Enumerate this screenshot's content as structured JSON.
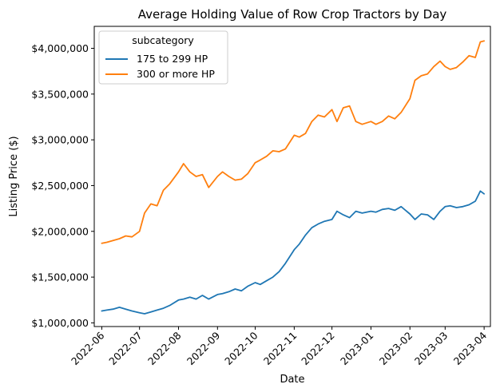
{
  "chart_data": {
    "type": "line",
    "title": "Average Holding Value of Row Crop Tractors by Day",
    "xlabel": "Date",
    "ylabel": "Listing Price ($)",
    "x_ticks": [
      "2022-06",
      "2022-07",
      "2022-08",
      "2022-09",
      "2022-10",
      "2022-11",
      "2022-12",
      "2023-01",
      "2023-02",
      "2023-03",
      "2023-04"
    ],
    "y_ticks": [
      1000000,
      1500000,
      2000000,
      2500000,
      3000000,
      3500000,
      4000000
    ],
    "y_tick_labels": [
      "$1,000,000",
      "$1,500,000",
      "$2,000,000",
      "$2,500,000",
      "$3,000,000",
      "$3,500,000",
      "$4,000,000"
    ],
    "xlim": [
      "2022-05-26",
      "2023-04-06"
    ],
    "ylim": [
      960000,
      4240000
    ],
    "grid": false,
    "legend": {
      "title": "subcategory",
      "placement": "top-left"
    },
    "series": [
      {
        "name": "175 to 299 HP",
        "color": "#1f77b4",
        "points": [
          [
            "2022-06-01",
            1130000
          ],
          [
            "2022-06-05",
            1140000
          ],
          [
            "2022-06-10",
            1150000
          ],
          [
            "2022-06-15",
            1170000
          ],
          [
            "2022-06-20",
            1150000
          ],
          [
            "2022-06-25",
            1130000
          ],
          [
            "2022-07-01",
            1110000
          ],
          [
            "2022-07-05",
            1100000
          ],
          [
            "2022-07-10",
            1120000
          ],
          [
            "2022-07-15",
            1140000
          ],
          [
            "2022-07-20",
            1160000
          ],
          [
            "2022-07-25",
            1190000
          ],
          [
            "2022-08-01",
            1250000
          ],
          [
            "2022-08-05",
            1260000
          ],
          [
            "2022-08-10",
            1280000
          ],
          [
            "2022-08-15",
            1260000
          ],
          [
            "2022-08-20",
            1300000
          ],
          [
            "2022-08-25",
            1260000
          ],
          [
            "2022-09-01",
            1310000
          ],
          [
            "2022-09-05",
            1320000
          ],
          [
            "2022-09-10",
            1340000
          ],
          [
            "2022-09-15",
            1370000
          ],
          [
            "2022-09-20",
            1350000
          ],
          [
            "2022-09-25",
            1400000
          ],
          [
            "2022-10-01",
            1440000
          ],
          [
            "2022-10-05",
            1420000
          ],
          [
            "2022-10-10",
            1460000
          ],
          [
            "2022-10-15",
            1500000
          ],
          [
            "2022-10-20",
            1560000
          ],
          [
            "2022-10-25",
            1650000
          ],
          [
            "2022-11-01",
            1800000
          ],
          [
            "2022-11-05",
            1860000
          ],
          [
            "2022-11-10",
            1960000
          ],
          [
            "2022-11-15",
            2040000
          ],
          [
            "2022-11-20",
            2080000
          ],
          [
            "2022-11-25",
            2110000
          ],
          [
            "2022-12-01",
            2130000
          ],
          [
            "2022-12-05",
            2220000
          ],
          [
            "2022-12-10",
            2180000
          ],
          [
            "2022-12-15",
            2150000
          ],
          [
            "2022-12-20",
            2220000
          ],
          [
            "2022-12-25",
            2200000
          ],
          [
            "2023-01-01",
            2220000
          ],
          [
            "2023-01-05",
            2210000
          ],
          [
            "2023-01-10",
            2240000
          ],
          [
            "2023-01-15",
            2250000
          ],
          [
            "2023-01-20",
            2230000
          ],
          [
            "2023-01-25",
            2270000
          ],
          [
            "2023-02-01",
            2190000
          ],
          [
            "2023-02-05",
            2130000
          ],
          [
            "2023-02-10",
            2190000
          ],
          [
            "2023-02-15",
            2180000
          ],
          [
            "2023-02-20",
            2130000
          ],
          [
            "2023-02-25",
            2220000
          ],
          [
            "2023-03-01",
            2270000
          ],
          [
            "2023-03-05",
            2280000
          ],
          [
            "2023-03-10",
            2260000
          ],
          [
            "2023-03-15",
            2270000
          ],
          [
            "2023-03-20",
            2290000
          ],
          [
            "2023-03-25",
            2330000
          ],
          [
            "2023-03-29",
            2440000
          ],
          [
            "2023-04-01",
            2410000
          ]
        ]
      },
      {
        "name": "300 or more HP",
        "color": "#ff7f0e",
        "points": [
          [
            "2022-06-01",
            1870000
          ],
          [
            "2022-06-05",
            1880000
          ],
          [
            "2022-06-10",
            1900000
          ],
          [
            "2022-06-15",
            1920000
          ],
          [
            "2022-06-20",
            1950000
          ],
          [
            "2022-06-25",
            1940000
          ],
          [
            "2022-07-01",
            2000000
          ],
          [
            "2022-07-05",
            2200000
          ],
          [
            "2022-07-10",
            2300000
          ],
          [
            "2022-07-15",
            2280000
          ],
          [
            "2022-07-20",
            2450000
          ],
          [
            "2022-07-25",
            2520000
          ],
          [
            "2022-08-01",
            2650000
          ],
          [
            "2022-08-05",
            2740000
          ],
          [
            "2022-08-10",
            2650000
          ],
          [
            "2022-08-15",
            2600000
          ],
          [
            "2022-08-20",
            2620000
          ],
          [
            "2022-08-25",
            2480000
          ],
          [
            "2022-09-01",
            2600000
          ],
          [
            "2022-09-05",
            2650000
          ],
          [
            "2022-09-10",
            2600000
          ],
          [
            "2022-09-15",
            2560000
          ],
          [
            "2022-09-20",
            2570000
          ],
          [
            "2022-09-25",
            2630000
          ],
          [
            "2022-10-01",
            2750000
          ],
          [
            "2022-10-05",
            2780000
          ],
          [
            "2022-10-10",
            2820000
          ],
          [
            "2022-10-15",
            2880000
          ],
          [
            "2022-10-20",
            2870000
          ],
          [
            "2022-10-25",
            2900000
          ],
          [
            "2022-11-01",
            3050000
          ],
          [
            "2022-11-05",
            3030000
          ],
          [
            "2022-11-10",
            3070000
          ],
          [
            "2022-11-15",
            3200000
          ],
          [
            "2022-11-20",
            3270000
          ],
          [
            "2022-11-25",
            3250000
          ],
          [
            "2022-12-01",
            3330000
          ],
          [
            "2022-12-05",
            3200000
          ],
          [
            "2022-12-10",
            3350000
          ],
          [
            "2022-12-15",
            3370000
          ],
          [
            "2022-12-20",
            3200000
          ],
          [
            "2022-12-25",
            3170000
          ],
          [
            "2023-01-01",
            3200000
          ],
          [
            "2023-01-05",
            3170000
          ],
          [
            "2023-01-10",
            3200000
          ],
          [
            "2023-01-15",
            3260000
          ],
          [
            "2023-01-20",
            3230000
          ],
          [
            "2023-01-25",
            3300000
          ],
          [
            "2023-02-01",
            3450000
          ],
          [
            "2023-02-05",
            3650000
          ],
          [
            "2023-02-10",
            3700000
          ],
          [
            "2023-02-15",
            3720000
          ],
          [
            "2023-02-20",
            3800000
          ],
          [
            "2023-02-25",
            3860000
          ],
          [
            "2023-03-01",
            3800000
          ],
          [
            "2023-03-05",
            3770000
          ],
          [
            "2023-03-10",
            3790000
          ],
          [
            "2023-03-15",
            3850000
          ],
          [
            "2023-03-20",
            3920000
          ],
          [
            "2023-03-25",
            3900000
          ],
          [
            "2023-03-29",
            4070000
          ],
          [
            "2023-04-01",
            4080000
          ]
        ]
      }
    ]
  }
}
